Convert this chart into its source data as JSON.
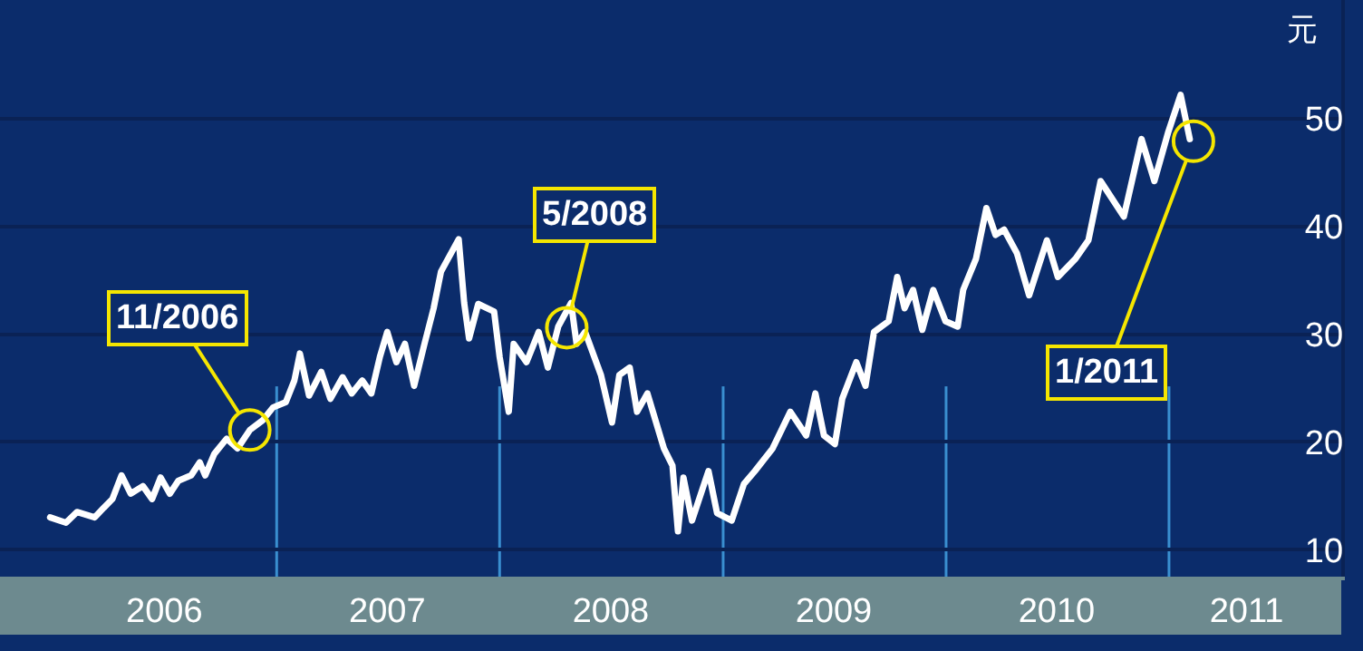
{
  "chart_data": {
    "type": "line",
    "ylabel": "元",
    "x": [
      "2005-12-26",
      "2006-01-21",
      "2006-02-08",
      "2006-03-09",
      "2006-03-24",
      "2006-04-07",
      "2006-04-22",
      "2006-05-07",
      "2006-05-27",
      "2006-06-11",
      "2006-06-25",
      "2006-07-10",
      "2006-07-24",
      "2006-08-14",
      "2006-08-28",
      "2006-09-06",
      "2006-09-21",
      "2006-10-11",
      "2006-10-29",
      "2006-11-18",
      "2006-12-09",
      "2006-12-26",
      "2007-01-16",
      "2007-01-30",
      "2007-02-08",
      "2007-02-23",
      "2007-03-15",
      "2007-03-30",
      "2007-04-19",
      "2007-05-04",
      "2007-05-21",
      "2007-06-05",
      "2007-06-19",
      "2007-07-01",
      "2007-07-16",
      "2007-07-30",
      "2007-08-14",
      "2007-08-31",
      "2007-09-15",
      "2007-09-27",
      "2007-10-26",
      "2007-11-04",
      "2007-11-12",
      "2007-11-27",
      "2007-12-23",
      "2008-01-01",
      "2008-01-16",
      "2008-01-24",
      "2008-02-14",
      "2008-03-05",
      "2008-03-20",
      "2008-04-06",
      "2008-04-27",
      "2008-05-06",
      "2008-05-20",
      "2008-06-15",
      "2008-07-03",
      "2008-07-15",
      "2008-08-01",
      "2008-08-13",
      "2008-08-30",
      "2008-09-26",
      "2008-10-10",
      "2008-10-19",
      "2008-10-28",
      "2008-11-11",
      "2008-12-08",
      "2008-12-22",
      "2009-01-15",
      "2009-02-04",
      "2009-02-22",
      "2009-03-23",
      "2009-04-21",
      "2009-05-17",
      "2009-06-01",
      "2009-06-15",
      "2009-07-03",
      "2009-07-15",
      "2009-08-07",
      "2009-08-22",
      "2009-09-05",
      "2009-09-29",
      "2009-10-13",
      "2009-10-25",
      "2009-11-08",
      "2009-11-23",
      "2009-12-11",
      "2009-12-31",
      "2010-01-20",
      "2010-01-29",
      "2010-02-19",
      "2010-03-08",
      "2010-03-23",
      "2010-04-06",
      "2010-04-27",
      "2010-05-17",
      "2010-06-15",
      "2010-07-03",
      "2010-08-01",
      "2010-08-22",
      "2010-09-11",
      "2010-10-19",
      "2010-11-17",
      "2010-12-08",
      "2010-12-31",
      "2011-01-20",
      "2011-02-04"
    ],
    "series": [
      {
        "color": "#ffffff",
        "values": [
          13.0,
          12.5,
          13.5,
          13.0,
          13.9,
          14.7,
          16.9,
          15.2,
          15.9,
          14.7,
          16.7,
          15.2,
          16.4,
          16.9,
          18.1,
          16.9,
          18.9,
          20.3,
          19.4,
          21.1,
          22.0,
          23.2,
          23.7,
          25.7,
          28.2,
          24.3,
          26.5,
          24.0,
          26.0,
          24.5,
          25.7,
          24.5,
          27.9,
          30.2,
          27.4,
          29.1,
          25.2,
          29.1,
          32.4,
          35.8,
          38.8,
          32.9,
          29.6,
          32.8,
          32.1,
          27.9,
          22.8,
          29.1,
          27.4,
          30.2,
          26.9,
          30.7,
          32.9,
          29.1,
          30.2,
          26.2,
          21.8,
          26.2,
          26.9,
          22.8,
          24.5,
          19.4,
          17.8,
          11.7,
          16.7,
          12.7,
          17.3,
          13.4,
          12.7,
          16.1,
          17.3,
          19.4,
          22.8,
          20.6,
          24.5,
          20.6,
          19.8,
          24.0,
          27.4,
          25.2,
          30.2,
          31.2,
          35.3,
          32.4,
          34.1,
          30.4,
          34.1,
          31.2,
          30.7,
          34.1,
          37.0,
          41.7,
          39.2,
          39.7,
          37.5,
          33.6,
          38.7,
          35.3,
          37.0,
          38.7,
          44.2,
          40.9,
          48.1,
          44.2,
          48.8,
          52.2,
          48.1
        ]
      }
    ],
    "xlim": [
      "2005-10-05",
      "2011-10-10"
    ],
    "xticks": [
      {
        "value": "2006-07-01",
        "label": "2006"
      },
      {
        "value": "2007-07-01",
        "label": "2007"
      },
      {
        "value": "2008-07-01",
        "label": "2008"
      },
      {
        "value": "2009-07-01",
        "label": "2009"
      },
      {
        "value": "2010-07-01",
        "label": "2010"
      },
      {
        "value": "2011-05-08",
        "label": "2011"
      }
    ],
    "ylim": [
      7.5,
      61
    ],
    "yticks": [
      10,
      20,
      30,
      40,
      50
    ],
    "grid": "y",
    "ref_lines": [
      {
        "axis": "x",
        "value": "2007-01-01",
        "color": "#3a8fd0"
      },
      {
        "axis": "x",
        "value": "2008-01-01",
        "color": "#3a8fd0"
      },
      {
        "axis": "x",
        "value": "2009-01-01",
        "color": "#3a8fd0"
      },
      {
        "axis": "x",
        "value": "2010-01-01",
        "color": "#3a8fd0"
      },
      {
        "axis": "x",
        "value": "2011-01-01",
        "color": "#3a8fd0"
      }
    ],
    "annotations": [
      {
        "text": "11/2006",
        "x": "2006-11-18",
        "y": 21.1
      },
      {
        "text": "5/2008",
        "x": "2008-04-20",
        "y": 30.6
      },
      {
        "text": "1/2011",
        "x": "2011-02-10",
        "y": 47.9
      }
    ]
  }
}
